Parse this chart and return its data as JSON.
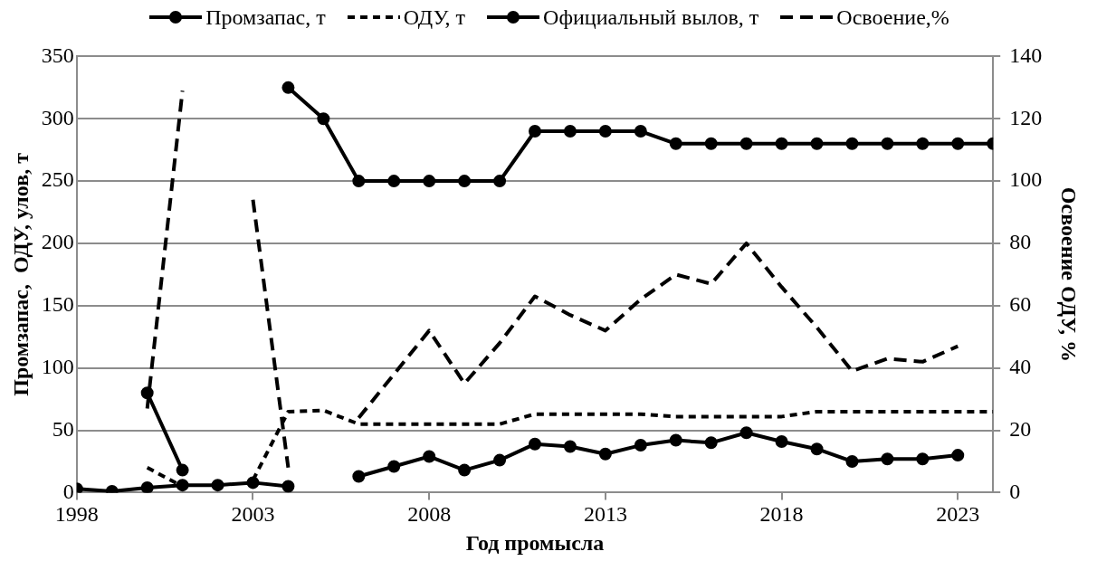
{
  "chart_data": {
    "type": "line",
    "xlabel": "Год промысла",
    "ylabel": "Промзапас,  ОДУ, улов, т",
    "y2label": "Освоение ОДУ, %",
    "x": [
      1998,
      1999,
      2000,
      2001,
      2002,
      2003,
      2004,
      2005,
      2006,
      2007,
      2008,
      2009,
      2010,
      2011,
      2012,
      2013,
      2014,
      2015,
      2016,
      2017,
      2018,
      2019,
      2020,
      2021,
      2022,
      2023,
      2024
    ],
    "xlim": [
      1998,
      2024
    ],
    "xticks": [
      1998,
      2003,
      2008,
      2013,
      2018,
      2023
    ],
    "ylim": [
      0,
      350
    ],
    "yticks": [
      0,
      50,
      100,
      150,
      200,
      250,
      300,
      350
    ],
    "y2lim": [
      0,
      140
    ],
    "y2ticks": [
      0,
      20,
      40,
      60,
      80,
      100,
      120,
      140
    ],
    "grid": "y",
    "legend": "top",
    "series": [
      {
        "name": "Промзапас, т",
        "color": "#000000",
        "marker": "circle",
        "line_style": "solid",
        "values": [
          null,
          null,
          80,
          18,
          null,
          null,
          325,
          300,
          250,
          250,
          250,
          250,
          250,
          290,
          290,
          290,
          290,
          280,
          280,
          280,
          280,
          280,
          280,
          280,
          280,
          280,
          280
        ]
      },
      {
        "name": "ОДУ, т",
        "color": "#000000",
        "marker": "none",
        "line_style": "dashed",
        "values": [
          null,
          null,
          20,
          5,
          null,
          10,
          65,
          66,
          55,
          55,
          55,
          55,
          55,
          63,
          63,
          63,
          63,
          61,
          61,
          61,
          61,
          65,
          65,
          65,
          65,
          65,
          65
        ]
      },
      {
        "name": "Официальный вылов, т",
        "color": "#000000",
        "marker": "circle",
        "line_style": "solid",
        "values": [
          3,
          1,
          4,
          6,
          6,
          8,
          5,
          null,
          13,
          21,
          29,
          18,
          26,
          39,
          37,
          31,
          38,
          42,
          40,
          48,
          41,
          35,
          25,
          27,
          27,
          30,
          null
        ]
      },
      {
        "name": "Освоение,%",
        "color": "#000000",
        "marker": "none",
        "line_style": "dashed",
        "axis": "y2",
        "values": [
          null,
          null,
          27,
          129,
          null,
          94,
          8,
          null,
          24,
          38,
          52,
          35,
          48,
          63,
          57,
          52,
          62,
          70,
          67,
          80,
          66,
          53,
          39,
          43,
          42,
          47,
          null
        ]
      }
    ]
  }
}
